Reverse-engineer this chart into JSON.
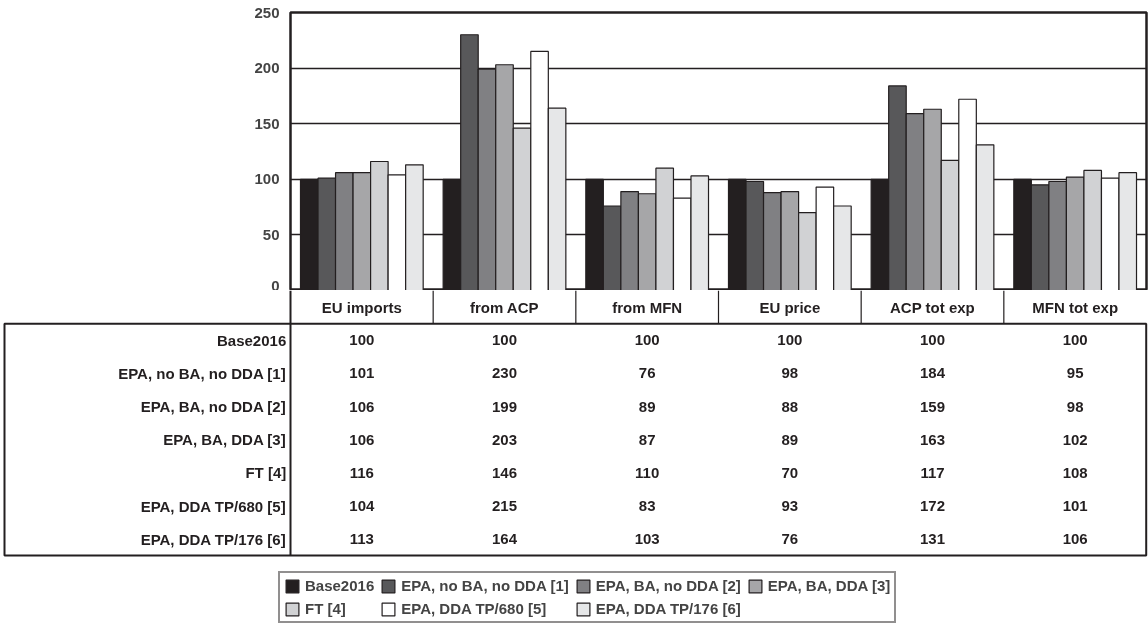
{
  "chart_data": {
    "type": "bar",
    "categories": [
      "EU imports",
      "from ACP",
      "from MFN",
      "EU price",
      "ACP tot exp",
      "MFN tot exp"
    ],
    "series": [
      {
        "name": "Base2016",
        "color": "#231f20",
        "values": [
          100,
          100,
          100,
          100,
          100,
          100
        ]
      },
      {
        "name": "EPA, no BA, no DDA [1]",
        "color": "#58585a",
        "values": [
          101,
          230,
          76,
          98,
          184,
          95
        ]
      },
      {
        "name": "EPA, BA, no DDA [2]",
        "color": "#808083",
        "values": [
          106,
          199,
          89,
          88,
          159,
          98
        ]
      },
      {
        "name": "EPA, BA, DDA [3]",
        "color": "#a6a6a8",
        "values": [
          106,
          203,
          87,
          89,
          163,
          102
        ]
      },
      {
        "name": "FT [4]",
        "color": "#d1d2d4",
        "values": [
          116,
          146,
          110,
          70,
          117,
          108
        ]
      },
      {
        "name": "EPA, DDA TP/680 [5]",
        "color": "#ffffff",
        "values": [
          104,
          215,
          83,
          93,
          172,
          101
        ]
      },
      {
        "name": "EPA, DDA TP/176 [6]",
        "color": "#e6e7e8",
        "values": [
          113,
          164,
          103,
          76,
          131,
          106
        ]
      }
    ],
    "ylim": [
      0,
      250
    ],
    "yticks": [
      0,
      50,
      100,
      150,
      200,
      250
    ],
    "grid": "y",
    "data_labels": true,
    "legend": "bottom"
  }
}
